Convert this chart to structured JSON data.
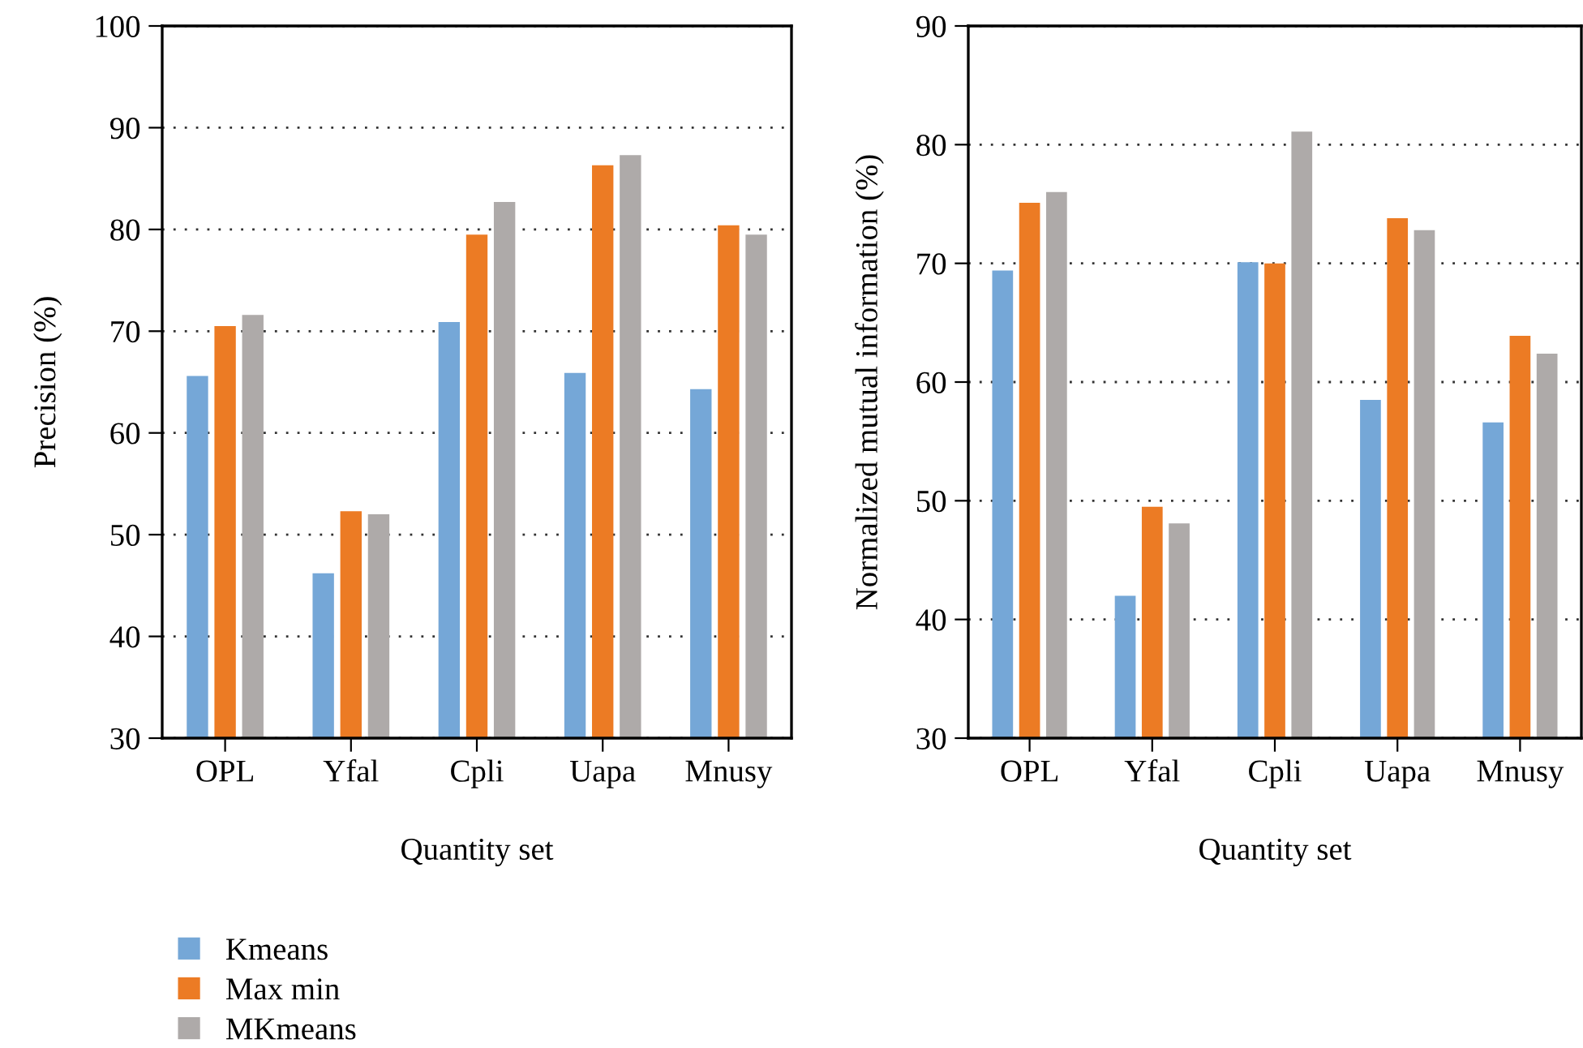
{
  "chart_data": [
    {
      "type": "bar",
      "xlabel": "Quantity set",
      "ylabel": "Precision (%)",
      "categories": [
        "OPL",
        "Yfal",
        "Cpli",
        "Uapa",
        "Mnusy"
      ],
      "series": [
        {
          "name": "Kmeans",
          "color": "#75a7d7",
          "values": [
            65.6,
            46.2,
            70.9,
            65.9,
            64.3
          ]
        },
        {
          "name": "Max min",
          "color": "#ec7b24",
          "values": [
            70.5,
            52.3,
            79.5,
            86.3,
            80.4
          ]
        },
        {
          "name": "MKmeans",
          "color": "#aeaaa9",
          "values": [
            71.6,
            52.0,
            82.7,
            87.3,
            79.5
          ]
        }
      ],
      "ylim": [
        30,
        100
      ],
      "yticks": [
        30,
        40,
        50,
        60,
        70,
        80,
        90,
        100
      ],
      "grid": "y",
      "legend": "bottom left"
    },
    {
      "type": "bar",
      "xlabel": "Quantity set",
      "ylabel": "Normalized mutual information (%)",
      "categories": [
        "OPL",
        "Yfal",
        "Cpli",
        "Uapa",
        "Mnusy"
      ],
      "series": [
        {
          "color": "#75a7d7",
          "values": [
            69.4,
            42.0,
            70.1,
            58.5,
            56.6
          ]
        },
        {
          "color": "#ec7b24",
          "values": [
            75.1,
            49.5,
            70.0,
            73.8,
            63.9
          ]
        },
        {
          "color": "#aeaaa9",
          "values": [
            76.0,
            48.1,
            81.1,
            72.8,
            62.4
          ]
        }
      ],
      "ylim": [
        30,
        90
      ],
      "yticks": [
        30,
        40,
        50,
        60,
        70,
        80,
        90
      ],
      "grid": "y",
      "legend": false
    }
  ]
}
